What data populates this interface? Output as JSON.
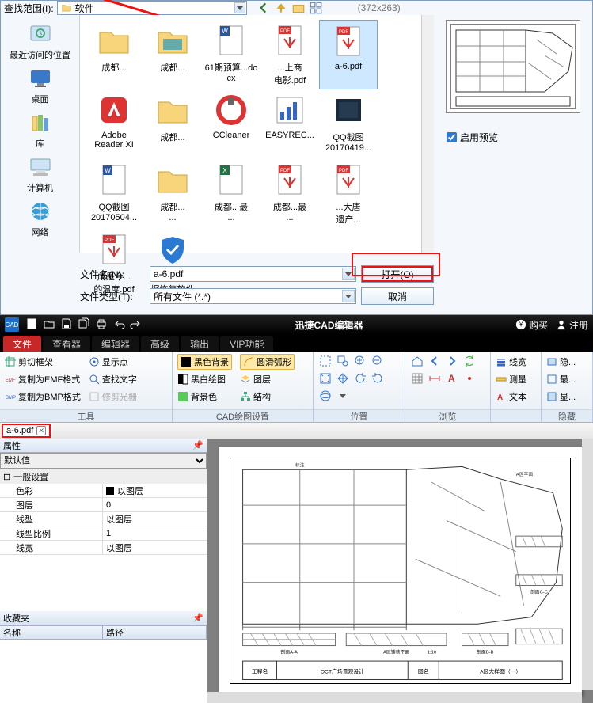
{
  "file_dialog": {
    "lookin_label": "查找范围(I):",
    "lookin_value": "软件",
    "dimensions": "(372x263)",
    "places": [
      {
        "name": "recent",
        "label": "最近访问的位置"
      },
      {
        "name": "desktop",
        "label": "桌面"
      },
      {
        "name": "libraries",
        "label": "库"
      },
      {
        "name": "computer",
        "label": "计算机"
      },
      {
        "name": "network",
        "label": "网络"
      }
    ],
    "files": [
      {
        "label": "成都...",
        "type": "folder"
      },
      {
        "label": "成都...",
        "type": "folder-img"
      },
      {
        "label": "61期预算...docx",
        "type": "docx"
      },
      {
        "label": "...上商\n电影.pdf",
        "type": "pdf"
      },
      {
        "label": "a-6.pdf",
        "type": "pdf",
        "selected": true
      },
      {
        "label": "Adobe\nReader XI",
        "type": "adobe"
      },
      {
        "label": "成都...",
        "type": "folder"
      },
      {
        "label": "CCleaner",
        "type": "ccleaner"
      },
      {
        "label": "EASYREC...",
        "type": "chart"
      },
      {
        "label": "QQ截图\n20170419...",
        "type": "image"
      },
      {
        "label": "QQ截图\n20170504...",
        "type": "docx"
      },
      {
        "label": "成都...\n...",
        "type": "folder"
      },
      {
        "label": "成都...最\n...",
        "type": "xls"
      },
      {
        "label": "成都...最\n...",
        "type": "pdf"
      },
      {
        "label": "...大唐\n遗产...",
        "type": "pdf"
      },
      {
        "label": "成是今...\n的温度.pdf",
        "type": "pdf"
      },
      {
        "label": "互盾手机数\n据恢复软件",
        "type": "shield"
      }
    ],
    "enable_preview": "启用预览",
    "filename_label": "文件名(N):",
    "filename_value": "a-6.pdf",
    "filetype_label": "文件类型(T):",
    "filetype_value": "所有文件 (*.*)",
    "open_btn": "打开(O)",
    "cancel_btn": "取消"
  },
  "cad": {
    "title": "迅捷CAD编辑器",
    "buy_label": "购买",
    "register_label": "注册",
    "tabs": [
      "文件",
      "查看器",
      "编辑器",
      "高级",
      "输出",
      "VIP功能"
    ],
    "ribbon": {
      "tools": {
        "caption": "工具",
        "items": [
          "剪切框架",
          "复制为EMF格式",
          "复制为BMP格式"
        ],
        "items2": [
          "显示点",
          "查找文字",
          "修剪光栅"
        ]
      },
      "cad_settings": {
        "caption": "CAD绘图设置",
        "black_bg": "黑色背景",
        "smooth_arc": "圆滑弧形",
        "bw_draw": "黑白绘图",
        "bg_color": "背景色",
        "layer": "图层",
        "structure": "结构"
      },
      "position_caption": "位置",
      "browse_caption": "浏览",
      "hide_caption": "隐藏",
      "linewidth": "线宽",
      "measure": "测量",
      "text": "文本",
      "hide_items": [
        "隐...",
        "最...",
        "显..."
      ]
    },
    "doctab": "a-6.pdf",
    "props": {
      "panel": "属性",
      "default": "默认值",
      "general": "一般设置",
      "rows": [
        {
          "k": "色彩",
          "v": "以图层",
          "swatch": true
        },
        {
          "k": "图层",
          "v": "0"
        },
        {
          "k": "线型",
          "v": "以图层"
        },
        {
          "k": "线型比例",
          "v": "1"
        },
        {
          "k": "线宽",
          "v": "以图层"
        }
      ],
      "fav": "收藏夹",
      "name_col": "名称",
      "path_col": "路径"
    },
    "drawing": {
      "texts": {
        "scale": "1:10",
        "project_label": "工程名",
        "project_value": "OCT广场景观设计",
        "sheet_label": "图名",
        "sheet_value": "A区大样图（一）",
        "section_aa": "剖面A-A",
        "plan_a": "A区铺装平面",
        "detail_b": "剖面B-B",
        "detail_c": "剖面C-C"
      }
    }
  }
}
